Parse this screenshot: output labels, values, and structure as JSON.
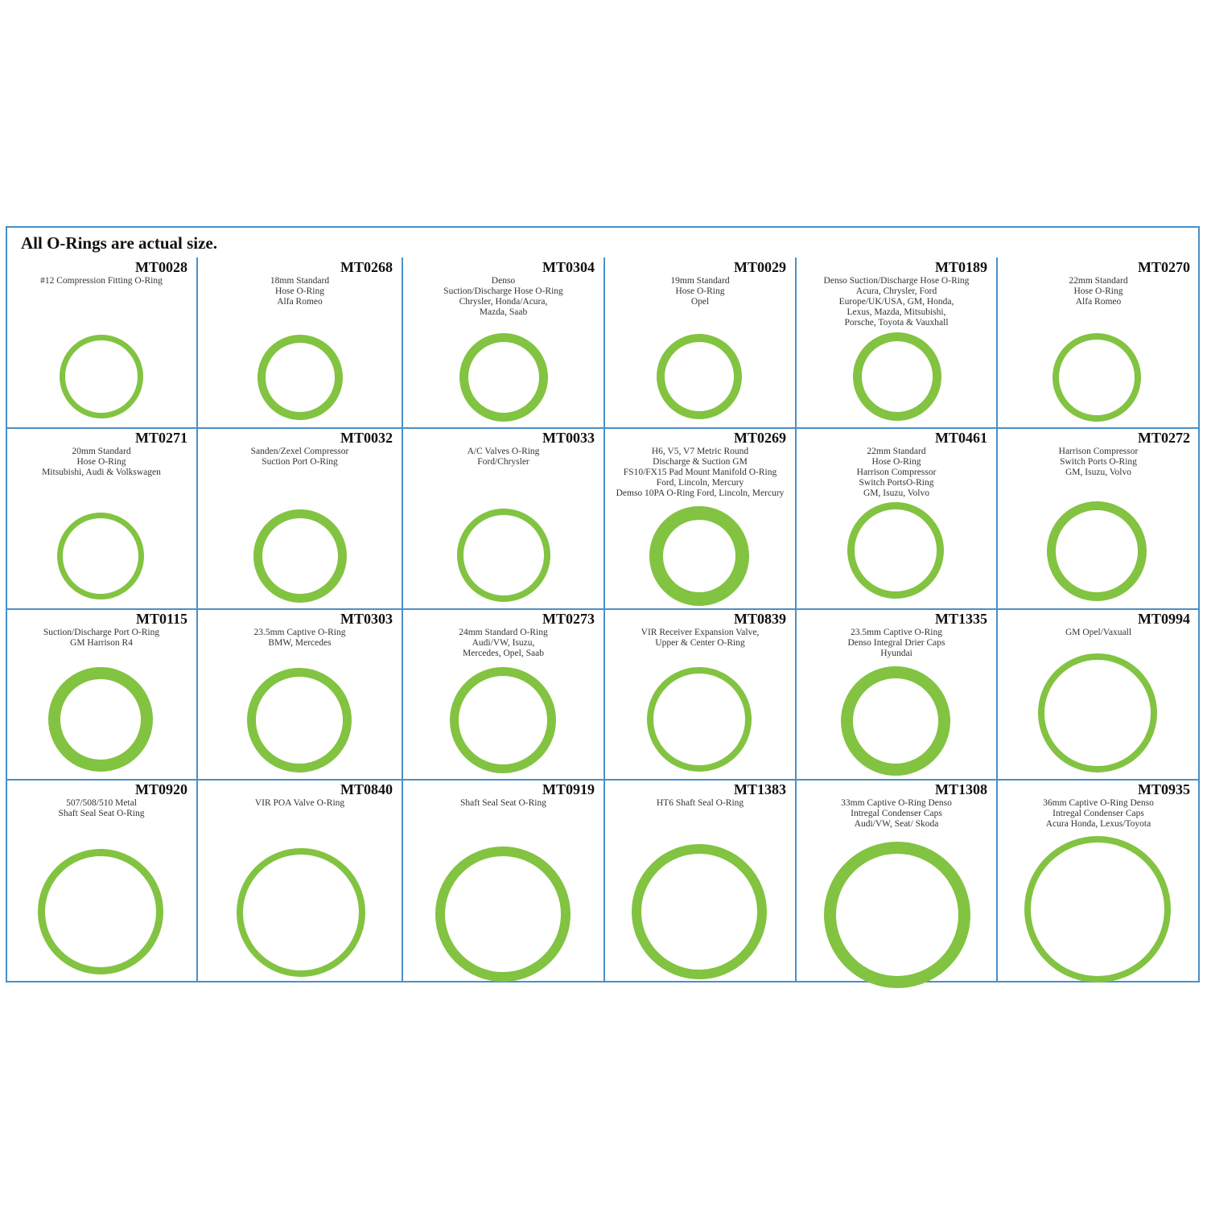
{
  "title": "All O-Rings are actual size.",
  "ring_color": "#82c341",
  "border_color": "#4a8fc8",
  "items": [
    {
      "code": "MT0028",
      "lines": [
        "#12 Compression Fitting O-Ring"
      ]
    },
    {
      "code": "MT0268",
      "lines": [
        "18mm Standard",
        "Hose O-Ring",
        "Alfa Romeo"
      ]
    },
    {
      "code": "MT0304",
      "lines": [
        "Denso",
        "Suction/Discharge Hose O-Ring",
        "Chrysler, Honda/Acura,",
        "Mazda, Saab"
      ]
    },
    {
      "code": "MT0029",
      "lines": [
        "19mm Standard",
        "Hose O-Ring",
        "Opel"
      ]
    },
    {
      "code": "MT0189",
      "lines": [
        "Denso Suction/Discharge Hose O-Ring",
        "Acura, Chrysler, Ford",
        "Europe/UK/USA, GM, Honda,",
        "Lexus, Mazda, Mitsubishi,",
        "Porsche, Toyota & Vauxhall"
      ]
    },
    {
      "code": "MT0270",
      "lines": [
        "22mm Standard",
        "Hose O-Ring",
        "Alfa Romeo"
      ]
    },
    {
      "code": "MT0271",
      "lines": [
        "20mm Standard",
        "Hose O-Ring",
        "Mitsubishi, Audi & Volkswagen"
      ]
    },
    {
      "code": "MT0032",
      "lines": [
        "Sanden/Zexel Compressor",
        "Suction Port O-Ring"
      ]
    },
    {
      "code": "MT0033",
      "lines": [
        "A/C Valves O-Ring",
        "Ford/Chrysler"
      ]
    },
    {
      "code": "MT0269",
      "lines": [
        "H6, V5, V7 Metric Round",
        "Discharge & Suction GM",
        "FS10/FX15 Pad Mount Manifold O-Ring",
        "Ford, Lincoln, Mercury",
        "Demso 10PA O-Ring Ford, Lincoln, Mercury"
      ]
    },
    {
      "code": "MT0461",
      "lines": [
        "22mm Standard",
        "Hose O-Ring",
        "Harrison Compressor",
        "Switch PortsO-Ring",
        "GM, Isuzu, Volvo"
      ]
    },
    {
      "code": "MT0272",
      "lines": [
        "Harrison Compressor",
        "Switch Ports O-Ring",
        "GM, Isuzu, Volvo"
      ]
    },
    {
      "code": "MT0115",
      "lines": [
        "Suction/Discharge Port O-Ring",
        "GM Harrison R4"
      ]
    },
    {
      "code": "MT0303",
      "lines": [
        "23.5mm Captive O-Ring",
        "BMW, Mercedes"
      ]
    },
    {
      "code": "MT0273",
      "lines": [
        "24mm Standard O-Ring",
        "Audi/VW, Isuzu,",
        "Mercedes, Opel, Saab"
      ]
    },
    {
      "code": "MT0839",
      "lines": [
        "VIR Receiver Expansion Valve,",
        "Upper & Center O-Ring"
      ]
    },
    {
      "code": "MT1335",
      "lines": [
        "23.5mm Captive O-Ring",
        "Denso Integral Drier Caps",
        "Hyundai"
      ]
    },
    {
      "code": "MT0994",
      "lines": [
        "GM Opel/Vaxuall"
      ]
    },
    {
      "code": "MT0920",
      "lines": [
        "507/508/510 Metal",
        "Shaft Seal Seat O-Ring"
      ]
    },
    {
      "code": "MT0840",
      "lines": [
        "VIR POA Valve O-Ring"
      ]
    },
    {
      "code": "MT0919",
      "lines": [
        "Shaft Seal Seat O-Ring"
      ]
    },
    {
      "code": "MT1383",
      "lines": [
        "HT6 Shaft Seal O-Ring"
      ]
    },
    {
      "code": "MT1308",
      "lines": [
        "33mm Captive O-Ring Denso",
        "Intregal Condenser Caps",
        "Audi/VW, Seat/ Skoda"
      ]
    },
    {
      "code": "MT0935",
      "lines": [
        "36mm Captive O-Ring Denso",
        "Intregal Condenser Caps",
        "Acura Honda, Lexus/Toyota"
      ]
    }
  ]
}
